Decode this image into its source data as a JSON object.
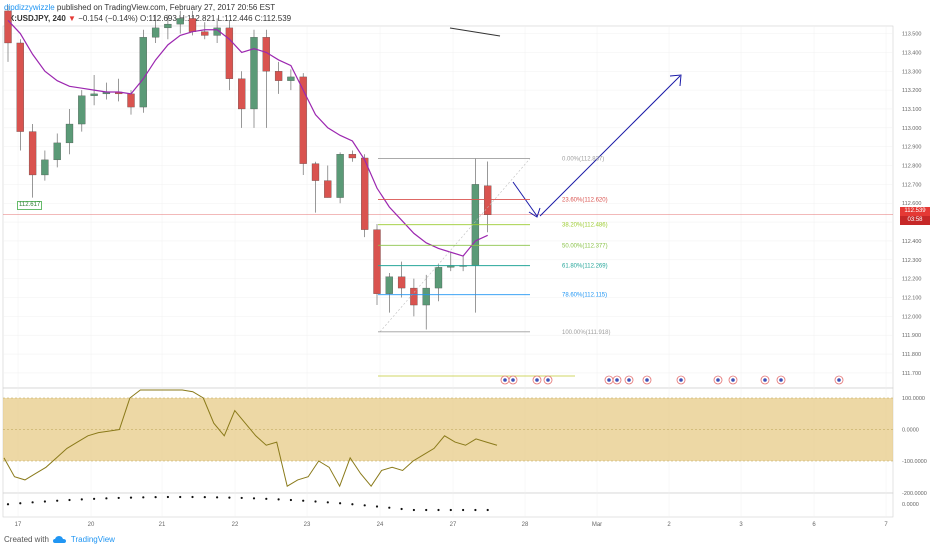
{
  "header": {
    "author": "dipdizzywizzle",
    "published_text": "published on TradingView.com, February 27, 2017 20:56 EST",
    "symbol": "FX:USDJPY, 240",
    "change": "−0.154 (−0.14%)",
    "ohlc": "O:112.693 H:112.821 L:112.446 C:112.539"
  },
  "footer": {
    "created_with": "Created with",
    "brand": "TradingView"
  },
  "tags": {
    "last_price": "112.539",
    "countdown": "03:58",
    "marked_low": "112.617"
  },
  "colors": {
    "up": "#5b9a77",
    "down": "#d9534f",
    "ma": "#9c27b0",
    "oscillator": "#8a7a1a",
    "band": "#e6c77f",
    "arrow": "#1a1aa8"
  },
  "chart_data": {
    "type": "candlestick",
    "price_axis": {
      "ylim": [
        111.62,
        113.54
      ],
      "ticks": [
        "113.500",
        "113.400",
        "113.300",
        "113.200",
        "113.100",
        "113.000",
        "112.900",
        "112.800",
        "112.700",
        "112.600",
        "112.500",
        "112.400",
        "112.300",
        "112.200",
        "112.100",
        "112.000",
        "111.900",
        "111.800",
        "111.700"
      ]
    },
    "x_ticks": [
      "17",
      "20",
      "21",
      "22",
      "23",
      "24",
      "27",
      "28",
      "Mar",
      "2",
      "3",
      "6",
      "7"
    ],
    "candles": [
      [
        113.62,
        113.65,
        113.35,
        113.45
      ],
      [
        113.45,
        113.47,
        112.88,
        112.98
      ],
      [
        112.98,
        113.02,
        112.63,
        112.75
      ],
      [
        112.75,
        112.88,
        112.72,
        112.83
      ],
      [
        112.83,
        112.97,
        112.79,
        112.92
      ],
      [
        112.92,
        113.1,
        112.86,
        113.02
      ],
      [
        113.02,
        113.2,
        112.98,
        113.17
      ],
      [
        113.17,
        113.28,
        113.12,
        113.18
      ],
      [
        113.18,
        113.24,
        113.15,
        113.19
      ],
      [
        113.19,
        113.26,
        113.14,
        113.18
      ],
      [
        113.18,
        113.2,
        113.07,
        113.11
      ],
      [
        113.11,
        113.52,
        113.08,
        113.48
      ],
      [
        113.48,
        113.6,
        113.45,
        113.53
      ],
      [
        113.53,
        113.6,
        113.47,
        113.55
      ],
      [
        113.55,
        113.62,
        113.5,
        113.58
      ],
      [
        113.58,
        113.62,
        113.49,
        113.51
      ],
      [
        113.51,
        113.56,
        113.47,
        113.49
      ],
      [
        113.49,
        113.58,
        113.45,
        113.53
      ],
      [
        113.53,
        113.57,
        113.2,
        113.26
      ],
      [
        113.26,
        113.3,
        113.0,
        113.1
      ],
      [
        113.1,
        113.52,
        113.0,
        113.48
      ],
      [
        113.48,
        113.52,
        113.0,
        113.3
      ],
      [
        113.3,
        113.35,
        113.18,
        113.25
      ],
      [
        113.25,
        113.31,
        113.2,
        113.27
      ],
      [
        113.27,
        113.29,
        112.75,
        112.81
      ],
      [
        112.81,
        112.82,
        112.55,
        112.72
      ],
      [
        112.72,
        112.8,
        112.63,
        112.63
      ],
      [
        112.63,
        112.87,
        112.6,
        112.86
      ],
      [
        112.86,
        112.88,
        112.82,
        112.84
      ],
      [
        112.84,
        112.86,
        112.42,
        112.46
      ],
      [
        112.46,
        112.49,
        112.06,
        112.12
      ],
      [
        112.12,
        112.23,
        112.02,
        112.21
      ],
      [
        112.21,
        112.29,
        112.1,
        112.15
      ],
      [
        112.15,
        112.2,
        112.0,
        112.06
      ],
      [
        112.06,
        112.22,
        111.93,
        112.15
      ],
      [
        112.15,
        112.28,
        112.08,
        112.26
      ],
      [
        112.26,
        112.34,
        112.24,
        112.27
      ],
      [
        112.27,
        112.32,
        112.24,
        112.27
      ],
      [
        112.27,
        112.84,
        112.02,
        112.7
      ],
      [
        112.693,
        112.821,
        112.446,
        112.539
      ]
    ],
    "ma": [
      113.57,
      113.5,
      113.39,
      113.3,
      113.25,
      113.22,
      113.21,
      113.2,
      113.19,
      113.19,
      113.18,
      113.26,
      113.36,
      113.44,
      113.49,
      113.51,
      113.52,
      113.52,
      113.47,
      113.4,
      113.42,
      113.4,
      113.36,
      113.33,
      113.2,
      113.07,
      113.0,
      112.96,
      112.93,
      112.83,
      112.68,
      112.58,
      112.51,
      112.44,
      112.39,
      112.36,
      112.34,
      112.32,
      112.4,
      112.43
    ],
    "fibonacci": [
      {
        "label": "0.00%(112.837)",
        "price": 112.837,
        "color": "#9e9e9e"
      },
      {
        "label": "23.60%(112.620)",
        "price": 112.62,
        "color": "#d9534f"
      },
      {
        "label": "38.20%(112.486)",
        "price": 112.486,
        "color": "#9ccc31"
      },
      {
        "label": "50.00%(112.377)",
        "price": 112.377,
        "color": "#8bc34a"
      },
      {
        "label": "61.80%(112.269)",
        "price": 112.269,
        "color": "#26a69a"
      },
      {
        "label": "78.60%(112.115)",
        "price": 112.115,
        "color": "#2196f3"
      },
      {
        "label": "100.00%(111.918)",
        "price": 111.918,
        "color": "#9e9e9e"
      }
    ],
    "oscillator": {
      "ticks": [
        "100.0000",
        "0.0000",
        "-100.0000"
      ],
      "band": [
        -100,
        100
      ],
      "values": [
        -90,
        -150,
        -160,
        -140,
        -120,
        -90,
        -60,
        -40,
        -20,
        -10,
        -5,
        0,
        100,
        140,
        190,
        180,
        140,
        170,
        120,
        100,
        20,
        -20,
        60,
        20,
        -20,
        -50,
        -40,
        -180,
        -160,
        -150,
        -100,
        -120,
        -180,
        -90,
        -140,
        -180,
        -130,
        -120,
        -130,
        -100,
        -80,
        -60,
        -20,
        -40,
        -50,
        -30,
        -40,
        -50
      ]
    },
    "lower": {
      "ticks": [
        "-200.0000",
        "0.0000"
      ]
    }
  }
}
